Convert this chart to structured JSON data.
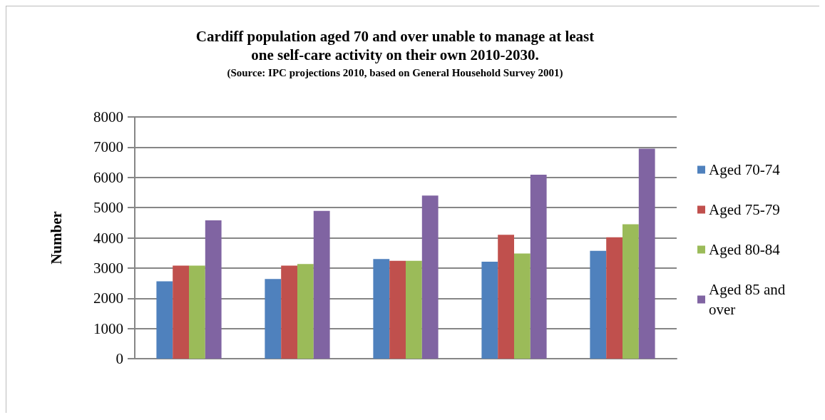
{
  "chart_data": {
    "type": "bar",
    "title": "Cardiff population aged 70 and over unable to manage at least\none self-care activity on their own 2010-2030.",
    "subtitle": "(Source: IPC projections 2010, based on General Household Survey 2001)",
    "ylabel": "Number",
    "categories": [
      null,
      null,
      null,
      null,
      null
    ],
    "series": [
      {
        "name": "Aged 70-74",
        "color": "#4f81bd",
        "values": [
          2560,
          2640,
          3300,
          3210,
          3570
        ]
      },
      {
        "name": "Aged 75-79",
        "color": "#c0504d",
        "values": [
          3080,
          3080,
          3240,
          4100,
          4020
        ]
      },
      {
        "name": "Aged 80-84",
        "color": "#9bbb59",
        "values": [
          3080,
          3130,
          3240,
          3480,
          4450
        ]
      },
      {
        "name": "Aged 85 and over",
        "color": "#8064a2",
        "values": [
          4580,
          4890,
          5400,
          6090,
          6950
        ]
      }
    ],
    "ylim": [
      0,
      8000
    ],
    "yticks": [
      0,
      1000,
      2000,
      3000,
      4000,
      5000,
      6000,
      7000,
      8000
    ],
    "grid": "y",
    "legend": "right"
  }
}
